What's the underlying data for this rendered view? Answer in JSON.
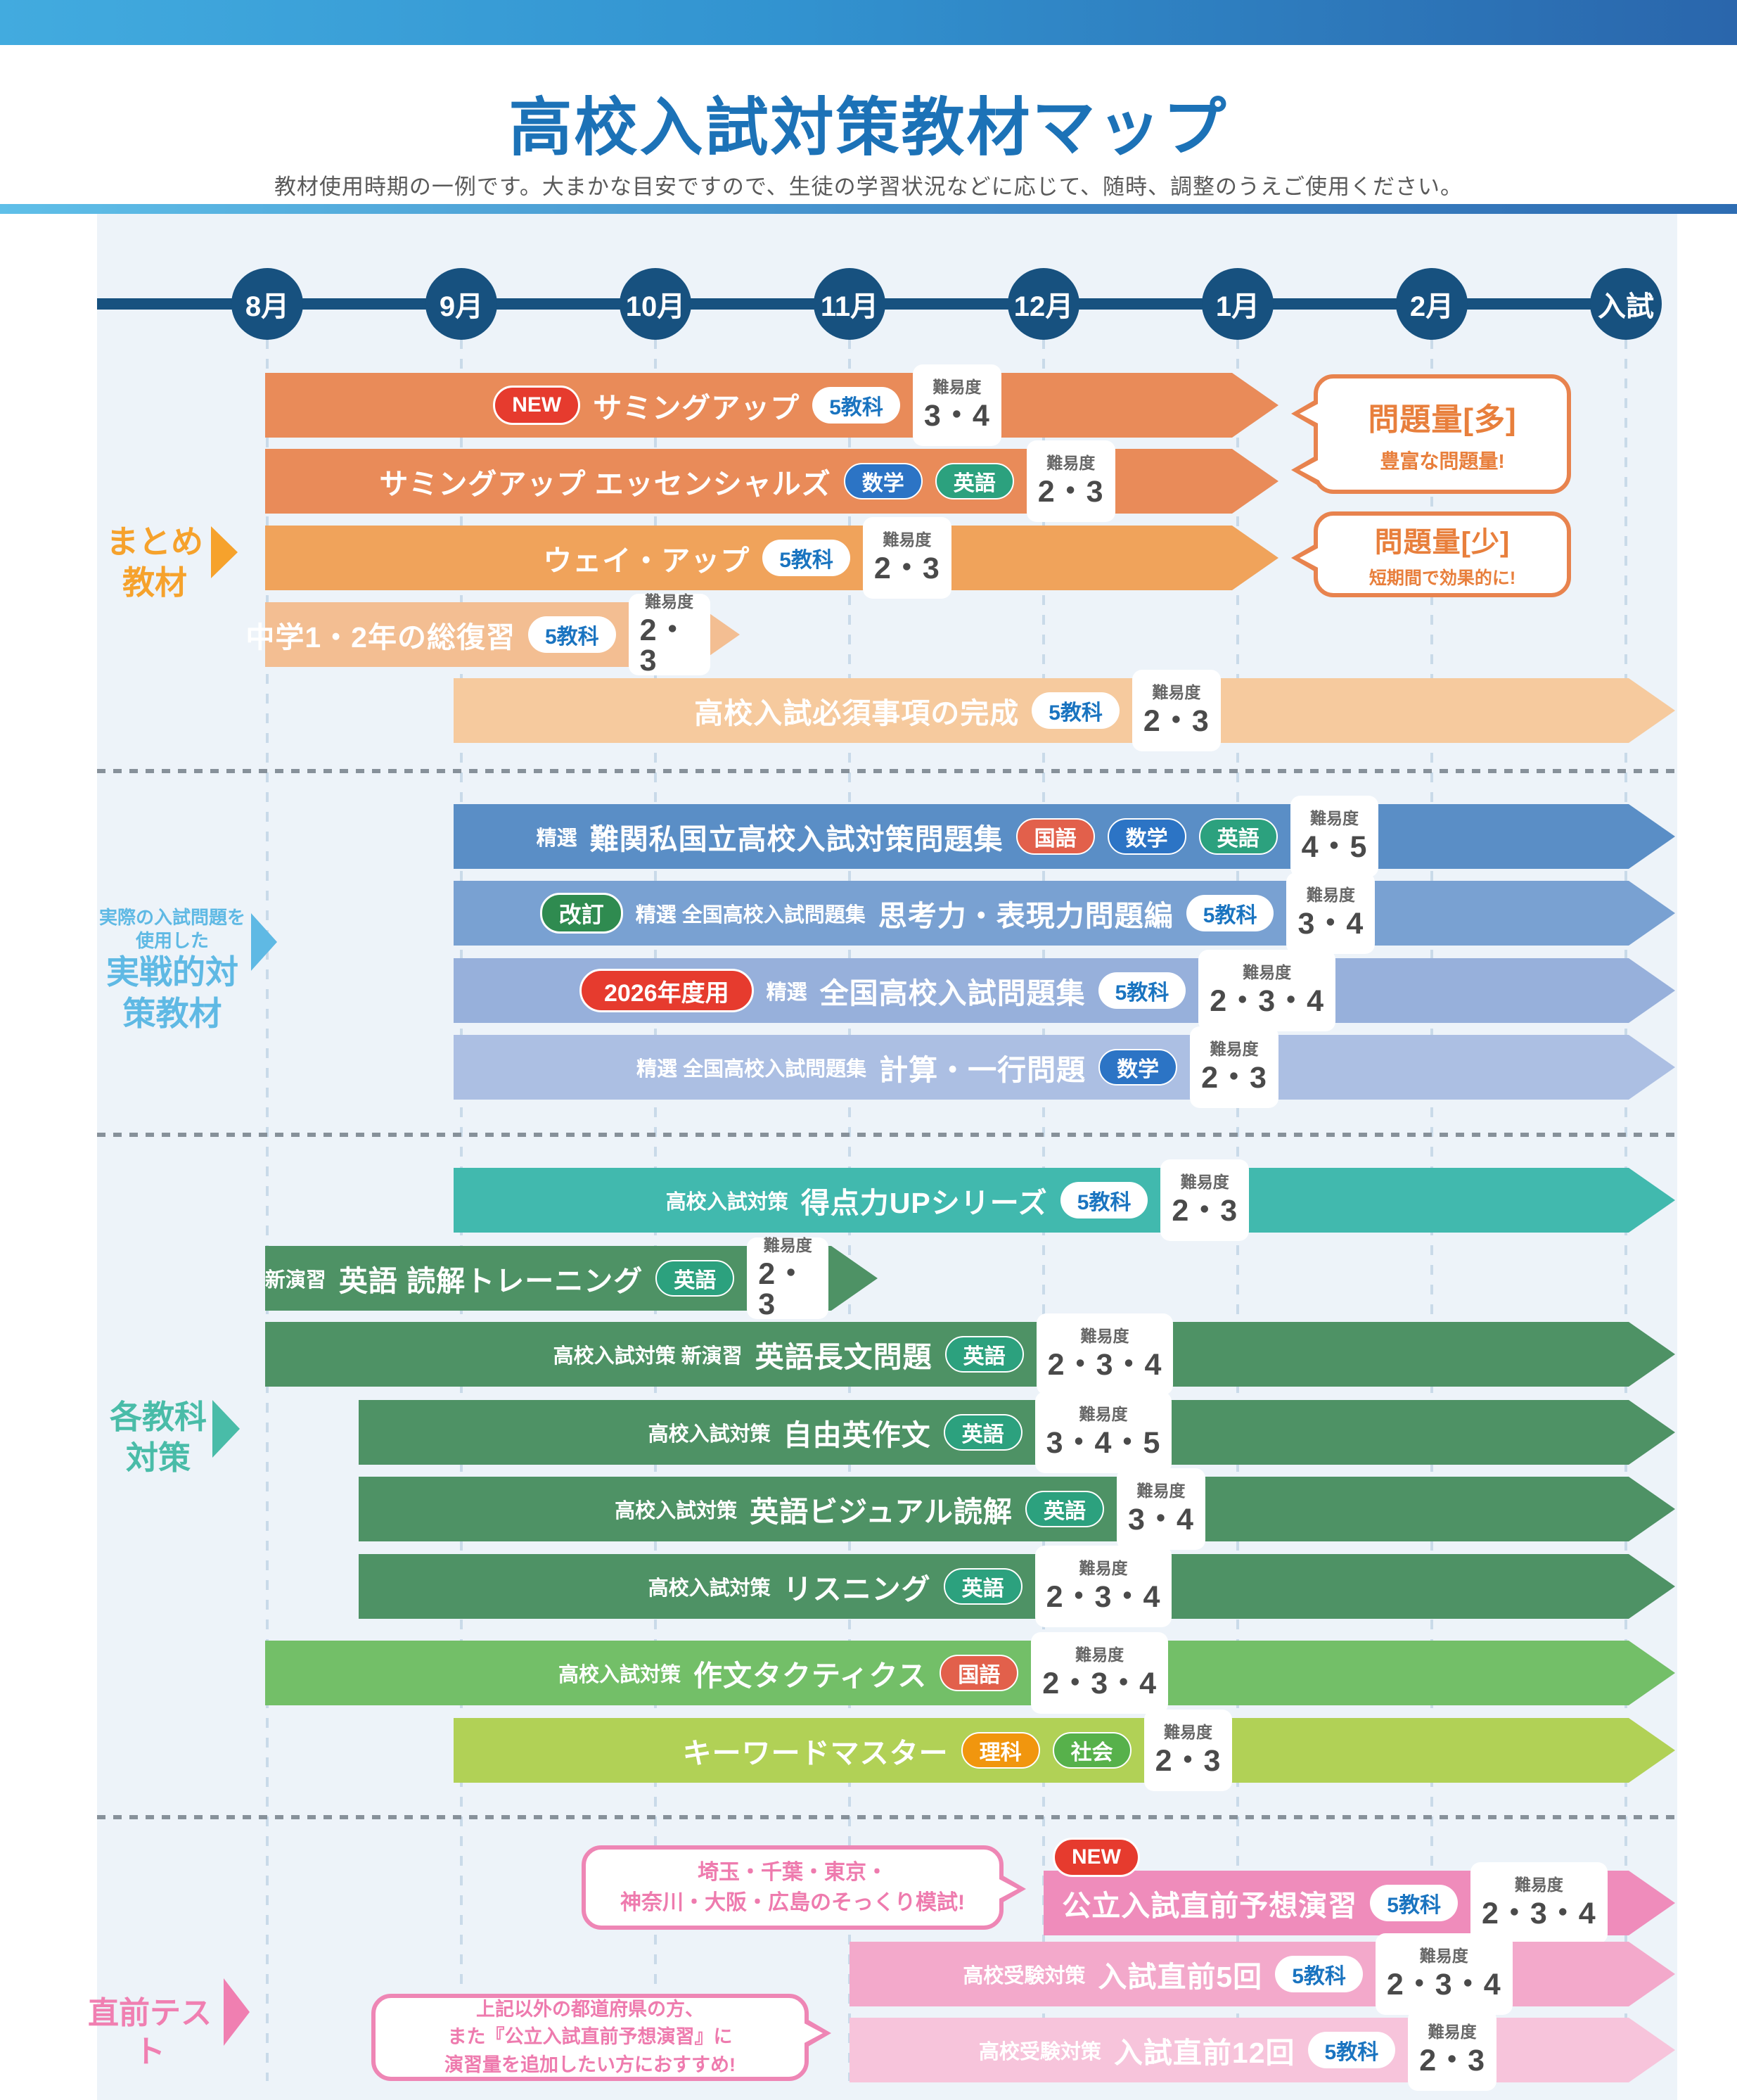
{
  "header": {
    "title": "高校入試対策教材マップ",
    "subtitle": "教材使用時期の一例です。大まかな目安ですので、生徒の学習状況などに応じて、随時、調整のうえご使用ください。"
  },
  "timeline": {
    "months": [
      "8月",
      "9月",
      "10月",
      "11月",
      "12月",
      "1月",
      "2月",
      "入試"
    ]
  },
  "sections": {
    "summary": {
      "line1": "まとめ",
      "line2": "教材",
      "color": "#F6A22C"
    },
    "practical": {
      "note": "実際の入試問題を使用した",
      "name": "実戦的対策教材",
      "color": "#5FB9E4"
    },
    "by_subject": {
      "line1": "各教科",
      "line2": "対策",
      "color": "#49BCA8"
    },
    "final_tests": {
      "name": "直前テスト",
      "color": "#F07FB1"
    }
  },
  "difficulty_label": "難易度",
  "rows": [
    {
      "title": "サミングアップ",
      "prefix": "",
      "lead": [
        {
          "type": "new",
          "label": "NEW"
        }
      ],
      "subjects": [
        {
          "type": "five",
          "label": "5教科"
        }
      ],
      "difficulty": "3・4",
      "period": {
        "start": "8月",
        "end": "1月"
      },
      "color": "#E98B59"
    },
    {
      "title": "サミングアップ エッセンシャルズ",
      "prefix": "",
      "lead": [],
      "subjects": [
        {
          "type": "math",
          "label": "数学"
        },
        {
          "type": "eng",
          "label": "英語"
        }
      ],
      "difficulty": "2・3",
      "period": {
        "start": "8月",
        "end": "1月"
      },
      "color": "#E98B59"
    },
    {
      "title": "ウェイ・アップ",
      "prefix": "",
      "lead": [],
      "subjects": [
        {
          "type": "five",
          "label": "5教科"
        }
      ],
      "difficulty": "2・3",
      "period": {
        "start": "8月",
        "end": "1月"
      },
      "color": "#F0A35B"
    },
    {
      "title": "中学1・2年の総復習",
      "prefix": "",
      "lead": [],
      "subjects": [
        {
          "type": "five",
          "label": "5教科"
        }
      ],
      "difficulty": "2・3",
      "period": {
        "start": "8月",
        "end": "10月"
      },
      "color": "#F3BE92"
    },
    {
      "title": "高校入試必須事項の完成",
      "prefix": "",
      "lead": [],
      "subjects": [
        {
          "type": "five",
          "label": "5教科"
        }
      ],
      "difficulty": "2・3",
      "period": {
        "start": "9月",
        "end": "入試"
      },
      "color": "#F6CA9E"
    },
    {
      "title": "難関私国立高校入試対策問題集",
      "prefix": "精選",
      "lead": [],
      "subjects": [
        {
          "type": "jpn",
          "label": "国語"
        },
        {
          "type": "math",
          "label": "数学"
        },
        {
          "type": "eng",
          "label": "英語"
        }
      ],
      "difficulty": "4・5",
      "period": {
        "start": "9月",
        "end": "入試"
      },
      "color": "#5A8EC6"
    },
    {
      "title": "思考力・表現力問題編",
      "prefix": "精選 全国高校入試問題集",
      "lead": [
        {
          "type": "kaitei",
          "label": "改訂"
        }
      ],
      "subjects": [
        {
          "type": "five",
          "label": "5教科"
        }
      ],
      "difficulty": "3・4",
      "period": {
        "start": "9月",
        "end": "入試"
      },
      "color": "#79A1D2"
    },
    {
      "title": "全国高校入試問題集",
      "prefix": "精選",
      "lead": [
        {
          "type": "y2026",
          "label": "2026年度用"
        }
      ],
      "subjects": [
        {
          "type": "five",
          "label": "5教科"
        }
      ],
      "difficulty": "2・3・4",
      "period": {
        "start": "9月",
        "end": "入試"
      },
      "color": "#97B0DB"
    },
    {
      "title": "計算・一行問題",
      "prefix": "精選 全国高校入試問題集",
      "lead": [],
      "subjects": [
        {
          "type": "math",
          "label": "数学"
        }
      ],
      "difficulty": "2・3",
      "period": {
        "start": "9月",
        "end": "入試"
      },
      "color": "#ACBFE3"
    },
    {
      "title": "得点力UPシリーズ",
      "prefix": "高校入試対策",
      "lead": [],
      "subjects": [
        {
          "type": "five",
          "label": "5教科"
        }
      ],
      "difficulty": "2・3",
      "period": {
        "start": "9月",
        "end": "入試"
      },
      "color": "#41B9AE"
    },
    {
      "title": "英語 読解トレーニング",
      "prefix": "新演習",
      "lead": [],
      "subjects": [
        {
          "type": "eng",
          "label": "英語"
        }
      ],
      "difficulty": "2・3",
      "period": {
        "start": "8月",
        "end": "11月"
      },
      "color": "#4E9265"
    },
    {
      "title": "英語長文問題",
      "prefix": "高校入試対策 新演習",
      "lead": [],
      "subjects": [
        {
          "type": "eng",
          "label": "英語"
        }
      ],
      "difficulty": "2・3・4",
      "period": {
        "start": "8月",
        "end": "入試"
      },
      "color": "#4E9265"
    },
    {
      "title": "自由英作文",
      "prefix": "高校入試対策",
      "lead": [],
      "subjects": [
        {
          "type": "eng",
          "label": "英語"
        }
      ],
      "difficulty": "3・4・5",
      "period": {
        "start": "8月",
        "end": "入試"
      },
      "color": "#4E9265"
    },
    {
      "title": "英語ビジュアル読解",
      "prefix": "高校入試対策",
      "lead": [],
      "subjects": [
        {
          "type": "eng",
          "label": "英語"
        }
      ],
      "difficulty": "3・4",
      "period": {
        "start": "8月",
        "end": "入試"
      },
      "color": "#4E9265"
    },
    {
      "title": "リスニング",
      "prefix": "高校入試対策",
      "lead": [],
      "subjects": [
        {
          "type": "eng",
          "label": "英語"
        }
      ],
      "difficulty": "2・3・4",
      "period": {
        "start": "8月",
        "end": "入試"
      },
      "color": "#4E9265"
    },
    {
      "title": "作文タクティクス",
      "prefix": "高校入試対策",
      "lead": [],
      "subjects": [
        {
          "type": "jpn",
          "label": "国語"
        }
      ],
      "difficulty": "2・3・4",
      "period": {
        "start": "8月",
        "end": "入試"
      },
      "color": "#73BF68"
    },
    {
      "title": "キーワードマスター",
      "prefix": "",
      "lead": [],
      "subjects": [
        {
          "type": "sci",
          "label": "理科"
        },
        {
          "type": "soc",
          "label": "社会"
        }
      ],
      "difficulty": "2・3",
      "period": {
        "start": "9月",
        "end": "入試"
      },
      "color": "#B1D156"
    },
    {
      "title": "公立入試直前予想演習",
      "prefix": "",
      "lead": [],
      "float_lead": {
        "type": "new",
        "label": "NEW"
      },
      "subjects": [
        {
          "type": "five",
          "label": "5教科"
        }
      ],
      "difficulty": "2・3・4",
      "period": {
        "start": "12月",
        "end": "入試"
      },
      "color": "#EF8CBB"
    },
    {
      "title": "入試直前5回",
      "prefix": "高校受験対策",
      "lead": [],
      "subjects": [
        {
          "type": "five",
          "label": "5教科"
        }
      ],
      "difficulty": "2・3・4",
      "period": {
        "start": "11月",
        "end": "入試"
      },
      "color": "#F3A9CB"
    },
    {
      "title": "入試直前12回",
      "prefix": "高校受験対策",
      "lead": [],
      "subjects": [
        {
          "type": "five",
          "label": "5教科"
        }
      ],
      "difficulty": "2・3",
      "period": {
        "start": "11月",
        "end": "入試"
      },
      "color": "#F7C4DB"
    }
  ],
  "bubbles": {
    "volume_many": {
      "title": "問題量[多]",
      "subtitle": "豊富な問題量!",
      "color": "#E8834E"
    },
    "volume_few": {
      "title": "問題量[少]",
      "subtitle": "短期間で効果的に!",
      "color": "#E8834E"
    },
    "mock_note": {
      "line1": "埼玉・千葉・東京・",
      "line2": "神奈川・大阪・広島のそっくり模試!",
      "color": "#EE86B5"
    },
    "recommend_note": {
      "line1": "上記以外の都道府県の方、",
      "line2": "また『公立入試直前予想演習』に",
      "line3": "演習量を追加したい方におすすめ!",
      "color": "#EE86B5"
    }
  }
}
